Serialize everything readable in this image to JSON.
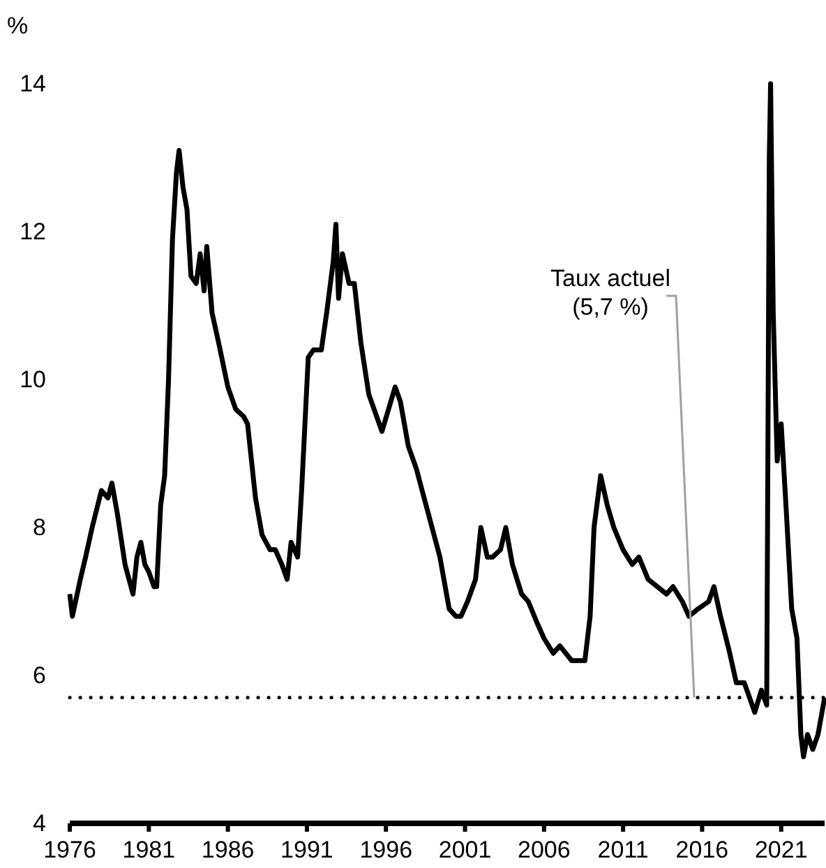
{
  "chart_data": {
    "type": "line",
    "ylabel": "%",
    "x": [
      "1976-01",
      "1976-03",
      "1976-09",
      "1977-01",
      "1977-06",
      "1978-01",
      "1978-06",
      "1978-09",
      "1979-01",
      "1979-07",
      "1980-01",
      "1980-04",
      "1980-07",
      "1980-10",
      "1981-01",
      "1981-05",
      "1981-07",
      "1981-10",
      "1982-01",
      "1982-04",
      "1982-07",
      "1982-10",
      "1982-12",
      "1983-03",
      "1983-06",
      "1983-09",
      "1984-01",
      "1984-04",
      "1984-07",
      "1984-09",
      "1985-01",
      "1985-06",
      "1986-01",
      "1986-07",
      "1987-01",
      "1987-04",
      "1987-10",
      "1988-03",
      "1988-09",
      "1989-01",
      "1989-06",
      "1989-10",
      "1990-01",
      "1990-06",
      "1990-09",
      "1991-02",
      "1991-06",
      "1991-12",
      "1992-04",
      "1992-09",
      "1992-11",
      "1993-01",
      "1993-04",
      "1993-09",
      "1994-01",
      "1994-06",
      "1994-12",
      "1995-06",
      "1995-10",
      "1996-03",
      "1996-08",
      "1996-12",
      "1997-06",
      "1997-12",
      "1998-06",
      "1998-12",
      "1999-06",
      "2000-01",
      "2000-06",
      "2000-10",
      "2001-03",
      "2001-09",
      "2002-01",
      "2002-06",
      "2002-10",
      "2003-04",
      "2003-08",
      "2004-01",
      "2004-08",
      "2005-01",
      "2005-08",
      "2006-01",
      "2006-08",
      "2007-01",
      "2007-10",
      "2008-02",
      "2008-08",
      "2008-12",
      "2009-03",
      "2009-08",
      "2010-01",
      "2010-06",
      "2011-01",
      "2011-08",
      "2012-01",
      "2012-08",
      "2013-03",
      "2013-10",
      "2014-03",
      "2014-10",
      "2015-03",
      "2015-10",
      "2016-06",
      "2016-10",
      "2017-03",
      "2017-10",
      "2018-03",
      "2018-09",
      "2019-01",
      "2019-05",
      "2019-10",
      "2020-02",
      "2020-04",
      "2020-05",
      "2020-07",
      "2020-10",
      "2021-01",
      "2021-05",
      "2021-09",
      "2022-01",
      "2022-04",
      "2022-06",
      "2022-09",
      "2023-01",
      "2023-05",
      "2023-08",
      "2023-09",
      "2023-10"
    ],
    "series": [
      {
        "color": "#000000",
        "values": [
          7.1,
          6.8,
          7.3,
          7.6,
          8.0,
          8.5,
          8.4,
          8.6,
          8.2,
          7.5,
          7.1,
          7.6,
          7.8,
          7.5,
          7.4,
          7.2,
          7.2,
          8.3,
          8.7,
          10.0,
          11.9,
          12.8,
          13.1,
          12.6,
          12.3,
          11.4,
          11.3,
          11.7,
          11.2,
          11.8,
          10.9,
          10.5,
          9.9,
          9.6,
          9.5,
          9.4,
          8.4,
          7.9,
          7.7,
          7.7,
          7.5,
          7.3,
          7.8,
          7.6,
          8.5,
          10.3,
          10.4,
          10.4,
          10.9,
          11.6,
          12.1,
          11.1,
          11.7,
          11.3,
          11.3,
          10.5,
          9.8,
          9.5,
          9.3,
          9.6,
          9.9,
          9.7,
          9.1,
          8.8,
          8.4,
          8.0,
          7.6,
          6.9,
          6.8,
          6.8,
          7.0,
          7.3,
          8.0,
          7.6,
          7.6,
          7.7,
          8.0,
          7.5,
          7.1,
          7.0,
          6.7,
          6.5,
          6.3,
          6.4,
          6.2,
          6.2,
          6.2,
          6.8,
          8.0,
          8.7,
          8.3,
          8.0,
          7.7,
          7.5,
          7.6,
          7.3,
          7.2,
          7.1,
          7.2,
          7.0,
          6.8,
          6.9,
          7.0,
          7.2,
          6.8,
          6.3,
          5.9,
          5.9,
          5.7,
          5.5,
          5.8,
          5.6,
          13.0,
          14.0,
          10.9,
          8.9,
          9.4,
          8.2,
          6.9,
          6.5,
          5.2,
          4.9,
          5.2,
          5.0,
          5.2,
          5.5,
          5.6,
          5.7
        ]
      }
    ],
    "xlim": [
      "1976-01",
      "2023-10"
    ],
    "xticks": [
      {
        "value": "1976-01",
        "label": "1976"
      },
      {
        "value": "1981-01",
        "label": "1981"
      },
      {
        "value": "1986-01",
        "label": "1986"
      },
      {
        "value": "1991-01",
        "label": "1991"
      },
      {
        "value": "1996-01",
        "label": "1996"
      },
      {
        "value": "2001-01",
        "label": "2001"
      },
      {
        "value": "2006-01",
        "label": "2006"
      },
      {
        "value": "2011-01",
        "label": "2011"
      },
      {
        "value": "2016-01",
        "label": "2016"
      },
      {
        "value": "2021-01",
        "label": "2021"
      }
    ],
    "ylim": [
      4,
      14
    ],
    "yticks": [
      4,
      6,
      8,
      10,
      12,
      14
    ],
    "grid": false,
    "marker": "none",
    "line_style": "solid",
    "ref_lines": [
      {
        "axis": "y",
        "value": 5.7,
        "color": "#000000",
        "line_style": "dotted"
      }
    ],
    "annotations": [
      {
        "text": "Taux actuel\n(5,7 %)",
        "x": "2015-07",
        "y": 5.7
      }
    ]
  }
}
